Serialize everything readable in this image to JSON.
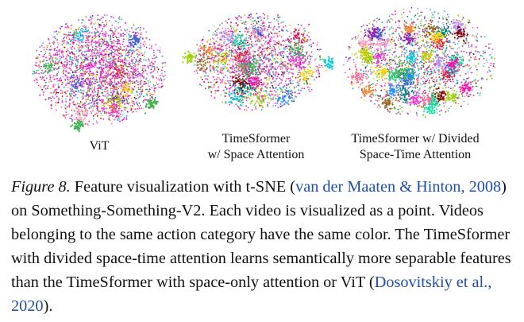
{
  "panels": [
    {
      "name": "vit",
      "label_lines": [
        "ViT"
      ]
    },
    {
      "name": "timesformer-space",
      "label_lines": [
        "TimeSformer",
        "w/ Space Attention"
      ]
    },
    {
      "name": "timesformer-divided",
      "label_lines": [
        "TimeSformer w/ Divided",
        "Space-Time Attention"
      ]
    }
  ],
  "caption": {
    "figure_label": "Figure 8.",
    "text_1": " Feature visualization with t-SNE (",
    "cite_1": "van der Maaten & Hinton, 2008",
    "text_2": ") on Something-Something-V2. Each video is visualized as a point. Videos belonging to the same action category have the same color. The TimeSformer with divided space-time attention learns semantically more separable features than the TimeSformer with space-only attention or ViT (",
    "cite_2": "Dosovitskiy et al., 2020",
    "text_3": ")."
  },
  "palette": [
    "#e6194b",
    "#3cb44b",
    "#ffd400",
    "#4363d8",
    "#f58231",
    "#911eb4",
    "#00c8e0",
    "#f032e6",
    "#9ad400",
    "#fa9fbe",
    "#008080",
    "#b38cff",
    "#9a6324",
    "#c8c800",
    "#800000",
    "#2ecc71",
    "#ff6f9f",
    "#1e90ff",
    "#ff00aa",
    "#00e5a0"
  ],
  "chart_data": [
    {
      "type": "scatter",
      "panel": "ViT",
      "cluster_separation": "low",
      "dominant_color": "#ff1fd6"
    },
    {
      "type": "scatter",
      "panel": "TimeSformer w/ Space Attention",
      "cluster_separation": "medium",
      "dominant_color": "#ff1fd6"
    },
    {
      "type": "scatter",
      "panel": "TimeSformer w/ Divided Space-Time Attention",
      "cluster_separation": "high",
      "dominant_color": "mixed"
    }
  ]
}
